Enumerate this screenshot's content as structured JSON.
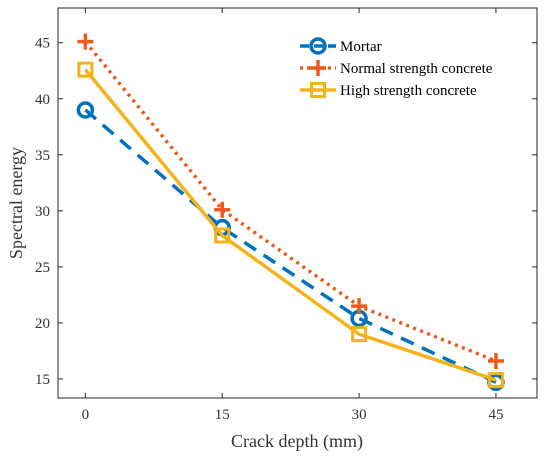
{
  "chart_data": {
    "type": "line",
    "title": "",
    "xlabel": "Crack depth (mm)",
    "ylabel": "Spectral energy",
    "categories": [
      0,
      15,
      30,
      45
    ],
    "x_ticks": [
      "0",
      "15",
      "30",
      "45"
    ],
    "y_ticks": [
      "15",
      "20",
      "25",
      "30",
      "35",
      "40",
      "45"
    ],
    "xlim": [
      -3.0,
      49.5
    ],
    "ylim": [
      13.3,
      48.1
    ],
    "grid": false,
    "legend_position": "top-right",
    "series": [
      {
        "name": "Mortar",
        "values": [
          39.0,
          28.5,
          20.4,
          14.7
        ],
        "color": "#0072BD",
        "line_style": "dashed",
        "marker": "circle"
      },
      {
        "name": "Normal strength concrete",
        "values": [
          45.1,
          30.1,
          21.5,
          16.6
        ],
        "color": "#ED5A1E",
        "line_style": "dotted",
        "marker": "plus"
      },
      {
        "name": "High strength concrete",
        "values": [
          42.6,
          27.8,
          19.0,
          14.9
        ],
        "color": "#F5B31A",
        "line_style": "solid",
        "marker": "square"
      }
    ]
  }
}
